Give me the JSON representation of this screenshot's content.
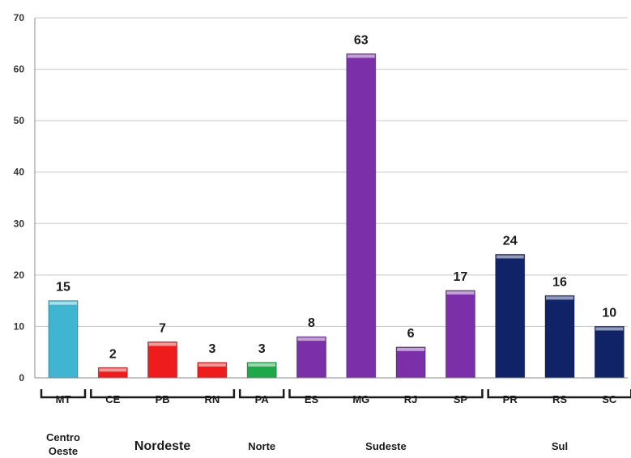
{
  "chart_data": {
    "type": "bar",
    "categories": [
      "MT",
      "CE",
      "PB",
      "RN",
      "PA",
      "ES",
      "MG",
      "RJ",
      "SP",
      "PR",
      "RS",
      "SC"
    ],
    "values": [
      15,
      2,
      7,
      3,
      3,
      8,
      63,
      6,
      17,
      24,
      16,
      10
    ],
    "ylim": [
      0,
      70
    ],
    "yticks": [
      "0",
      "10",
      "20",
      "30",
      "40",
      "50",
      "60",
      "70"
    ],
    "grid": true,
    "legend": "none",
    "title": "",
    "xlabel": "",
    "ylabel": "",
    "groups": [
      {
        "name_lines": [
          "Centro",
          "Oeste"
        ],
        "start": 0,
        "end": 0,
        "color": "#3fb5d1"
      },
      {
        "name_lines": [
          "Nordeste"
        ],
        "start": 1,
        "end": 3,
        "color": "#ee1c1c"
      },
      {
        "name_lines": [
          "Norte"
        ],
        "start": 4,
        "end": 4,
        "color": "#1ea84a"
      },
      {
        "name_lines": [
          "Sudeste"
        ],
        "start": 5,
        "end": 8,
        "color": "#7b2fa8"
      },
      {
        "name_lines": [
          "Sul"
        ],
        "start": 9,
        "end": 11,
        "color": "#0f2366"
      }
    ]
  }
}
